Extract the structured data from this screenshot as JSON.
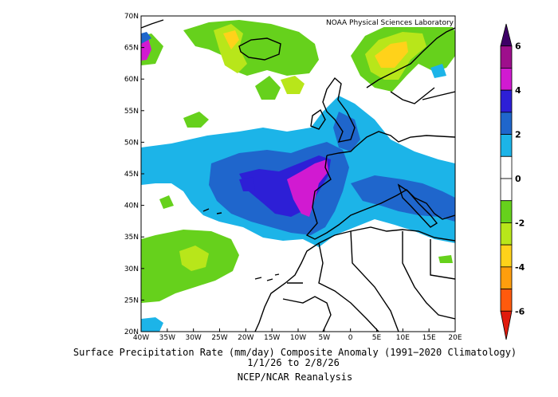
{
  "map": {
    "credit": "NOAA Physical Sciences Laboratory",
    "lat_labels": [
      "70N",
      "65N",
      "60N",
      "55N",
      "50N",
      "45N",
      "40N",
      "35N",
      "30N",
      "25N",
      "20N"
    ],
    "lon_labels": [
      "40W",
      "35W",
      "30W",
      "25W",
      "20W",
      "15W",
      "10W",
      "5W",
      "0",
      "5E",
      "10E",
      "15E",
      "20E"
    ],
    "extent": {
      "lon": [
        -40,
        20
      ],
      "lat": [
        20,
        70
      ]
    }
  },
  "colorbar": {
    "ticks": [
      "6",
      "4",
      "2",
      "0",
      "-2",
      "-4",
      "-6"
    ],
    "colors": [
      "#3d0066",
      "#9e0f8c",
      "#d11ad1",
      "#2d1fd6",
      "#1f66cc",
      "#1cb4e8",
      "#ffffff",
      "#ffffff",
      "#66d11c",
      "#b8e61a",
      "#ffd21a",
      "#ff9e0d",
      "#ff5a0d",
      "#e01a0d"
    ]
  },
  "caption": {
    "title": "Surface Precipitation Rate (mm/day) Composite Anomaly (1991−2020 Climatology)",
    "dates": "1/1/26  to 2/8/26",
    "source": "NCEP/NCAR Reanalysis"
  }
}
